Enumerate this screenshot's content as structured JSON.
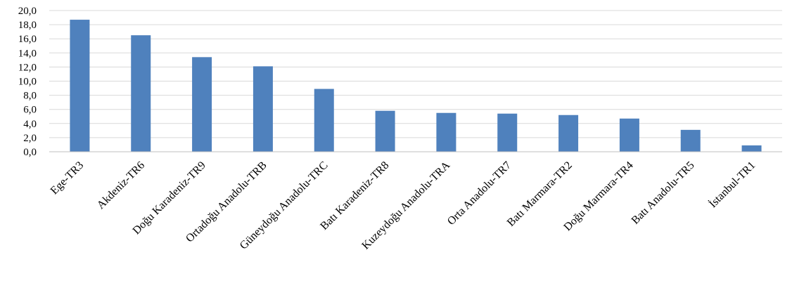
{
  "chart_data": {
    "type": "bar",
    "categories": [
      "Ege-TR3",
      "Akdeniz-TR6",
      "Doğu Karadeniz-TR9",
      "Ortadoğu Anadolu-TRB",
      "Güneydoğu Anadolu-TRC",
      "Batı Karadeniz-TR8",
      "Kuzeydoğu Anadolu-TRA",
      "Orta Anadolu-TR7",
      "Batı Marmara-TR2",
      "Doğu Marmara-TR4",
      "Batı Anadolu-TR5",
      "İstanbul-TR1"
    ],
    "values": [
      18.7,
      16.5,
      13.4,
      12.1,
      8.9,
      5.8,
      5.5,
      5.4,
      5.2,
      4.7,
      3.1,
      0.9
    ],
    "yticks": [
      "0,0",
      "2,0",
      "4,0",
      "6,0",
      "8,0",
      "10,0",
      "12,0",
      "14,0",
      "16,0",
      "18,0",
      "20,0"
    ],
    "ylim": [
      0,
      20
    ],
    "title": "",
    "xlabel": "",
    "ylabel": "",
    "grid": true,
    "legend": "none",
    "colors": {
      "bar": "#4f81bd",
      "grid": "#d9d9d9",
      "axis": "#bfbfbf"
    }
  }
}
